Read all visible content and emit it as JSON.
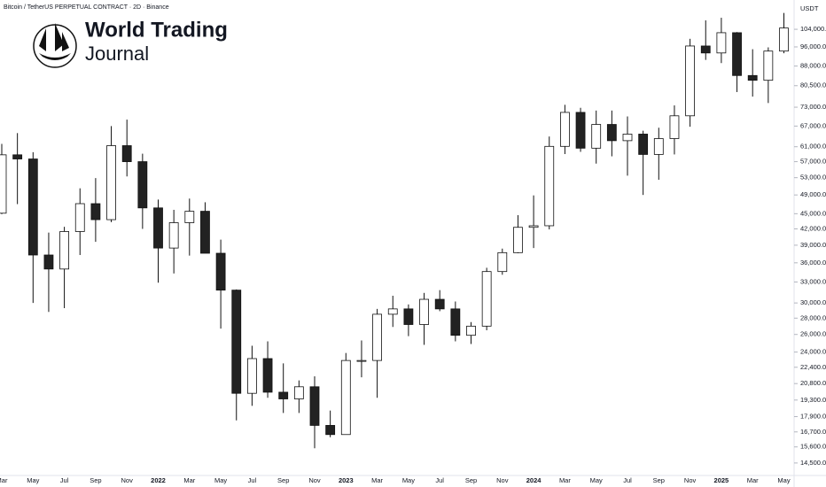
{
  "chart_data": {
    "type": "candlestick",
    "title": "Bitcoin / TetherUS PERPETUAL CONTRACT · 2D · Binance",
    "currency": "USDT",
    "logo_title": "World Trading",
    "logo_subtitle": "Journal",
    "log_scale": true,
    "up_color": "#ffffff",
    "down_color": "#222222",
    "outline_color": "#111111",
    "categories": [
      "Mar",
      null,
      "May",
      null,
      "Jul",
      null,
      "Sep",
      null,
      "Nov",
      null,
      "2022",
      null,
      "Mar",
      null,
      "May",
      null,
      "Jul",
      null,
      "Sep",
      null,
      "Nov",
      null,
      "2023",
      null,
      "Mar",
      null,
      "May",
      null,
      "Jul",
      null,
      "Sep",
      null,
      "Nov",
      null,
      "2024",
      null,
      "Mar",
      null,
      "May",
      null,
      "Jul",
      null,
      "Sep",
      null,
      "Nov",
      null,
      "2025",
      null,
      "Mar",
      null,
      "May"
    ],
    "open": [
      45100,
      58800,
      57700,
      37300,
      35000,
      41500,
      47100,
      43800,
      61300,
      57000,
      46200,
      38500,
      43200,
      45500,
      37600,
      31800,
      19900,
      23300,
      20000,
      19400,
      20500,
      17200,
      16500,
      23100,
      23100,
      28500,
      29200,
      27200,
      30500,
      29200,
      25900,
      27000,
      34600,
      37700,
      42300,
      42600,
      61100,
      71300,
      60600,
      67500,
      62700,
      64600,
      58900,
      63300,
      70200,
      96400,
      93400,
      102400,
      84300,
      82500,
      94200
    ],
    "high": [
      61800,
      64900,
      59500,
      41300,
      42400,
      50500,
      52900,
      67000,
      69000,
      59100,
      47990,
      45800,
      48200,
      47400,
      40000,
      31900,
      24700,
      25200,
      22800,
      21100,
      21500,
      18400,
      23900,
      25300,
      29200,
      31000,
      29800,
      31400,
      31800,
      30200,
      27500,
      35200,
      38400,
      44700,
      48900,
      63900,
      73800,
      72800,
      71900,
      71900,
      70000,
      65600,
      66500,
      73600,
      99600,
      108300,
      109600,
      102700,
      95000,
      95800,
      112000
    ],
    "low": [
      44900,
      47000,
      30000,
      28800,
      29300,
      37300,
      39600,
      43300,
      53300,
      42000,
      32900,
      34300,
      37200,
      37600,
      26700,
      17600,
      18800,
      19500,
      18200,
      18200,
      15500,
      16300,
      16500,
      21400,
      19500,
      26900,
      25800,
      24800,
      28900,
      25200,
      24900,
      26500,
      34100,
      37600,
      38500,
      41900,
      59000,
      59600,
      56500,
      58400,
      53500,
      49000,
      52500,
      58900,
      66800,
      90500,
      89200,
      78200,
      76600,
      74400,
      93300
    ],
    "close": [
      58800,
      57700,
      37300,
      35000,
      41500,
      47100,
      43800,
      61300,
      57000,
      46200,
      38500,
      43200,
      45500,
      37600,
      31800,
      19900,
      23300,
      20000,
      19400,
      20500,
      17200,
      16500,
      23100,
      23100,
      28500,
      29200,
      27200,
      30500,
      29200,
      25900,
      27000,
      34600,
      37700,
      42300,
      42600,
      61100,
      71300,
      60600,
      67500,
      62700,
      64600,
      58900,
      63300,
      70200,
      96400,
      93400,
      102400,
      84300,
      82500,
      94200,
      104600
    ],
    "ylim": [
      13700,
      118800
    ],
    "yticks": [
      {
        "value": 104000,
        "label": "104,000.0"
      },
      {
        "value": 96000,
        "label": "96,000.0"
      },
      {
        "value": 88000,
        "label": "88,000.0"
      },
      {
        "value": 80500,
        "label": "80,500.0"
      },
      {
        "value": 73000,
        "label": "73,000.0"
      },
      {
        "value": 67000,
        "label": "67,000.0"
      },
      {
        "value": 61000,
        "label": "61,000.0"
      },
      {
        "value": 57000,
        "label": "57,000.0"
      },
      {
        "value": 53000,
        "label": "53,000.0"
      },
      {
        "value": 49000,
        "label": "49,000.0"
      },
      {
        "value": 45000,
        "label": "45,000.0"
      },
      {
        "value": 42000,
        "label": "42,000.0"
      },
      {
        "value": 39000,
        "label": "39,000.0"
      },
      {
        "value": 36000,
        "label": "36,000.0"
      },
      {
        "value": 33000,
        "label": "33,000.0"
      },
      {
        "value": 30000,
        "label": "30,000.0"
      },
      {
        "value": 28000,
        "label": "28,000.0"
      },
      {
        "value": 26000,
        "label": "26,000.0"
      },
      {
        "value": 24000,
        "label": "24,000.0"
      },
      {
        "value": 22400,
        "label": "22,400.0"
      },
      {
        "value": 20800,
        "label": "20,800.0"
      },
      {
        "value": 19300,
        "label": "19,300.0"
      },
      {
        "value": 17900,
        "label": "17,900.0"
      },
      {
        "value": 16700,
        "label": "16,700.0"
      },
      {
        "value": 15600,
        "label": "15,600.0"
      },
      {
        "value": 14500,
        "label": "14,500.0"
      }
    ]
  }
}
